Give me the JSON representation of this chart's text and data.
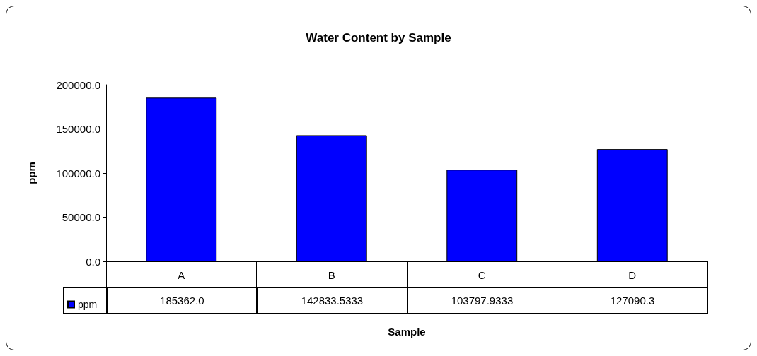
{
  "chart_data": {
    "type": "bar",
    "title": "Water Content by Sample",
    "xlabel": "Sample",
    "ylabel": "ppm",
    "categories": [
      "A",
      "B",
      "C",
      "D"
    ],
    "series": [
      {
        "name": "ppm",
        "color": "#0000ff",
        "values": [
          185362.0,
          142833.5333,
          103797.9333,
          127090.3
        ],
        "value_labels": [
          "185362.0",
          "142833.5333",
          "103797.9333",
          "127090.3"
        ]
      }
    ],
    "ylim": [
      0,
      200000
    ],
    "yticks": [
      {
        "value": 0,
        "label": "0.0"
      },
      {
        "value": 50000,
        "label": "50000.0"
      },
      {
        "value": 100000,
        "label": "100000.0"
      },
      {
        "value": 150000,
        "label": "150000.0"
      },
      {
        "value": 200000,
        "label": "200000.0"
      }
    ],
    "grid": false,
    "legend": "bottom left"
  }
}
